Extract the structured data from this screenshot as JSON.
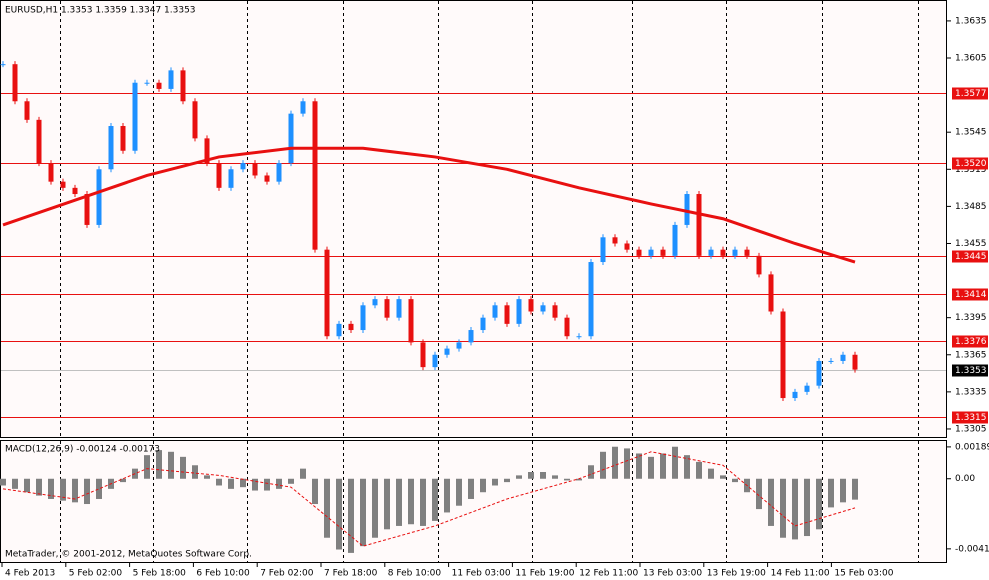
{
  "header": {
    "symbol_info": "EURUSD,H1  1.3353 1.3359 1.3347 1.3353",
    "macd_info": "MACD(12,26,9) -0.00124 -0.00173",
    "copyright": "MetaTrader, © 2001-2012, MetaQuotes Software Corp."
  },
  "x_labels": [
    "4 Feb 2013",
    "5 Feb 02:00",
    "5 Feb 18:00",
    "6 Feb 10:00",
    "7 Feb 02:00",
    "7 Feb 18:00",
    "8 Feb 10:00",
    "11 Feb 03:00",
    "11 Feb 19:00",
    "12 Feb 11:00",
    "13 Feb 03:00",
    "13 Feb 19:00",
    "14 Feb 11:00",
    "15 Feb 03:00"
  ],
  "chart_data": [
    {
      "type": "candlestick",
      "up_color": "#1e90ff",
      "down_color": "#e81010",
      "closes": [
        1.36,
        1.357,
        1.3555,
        1.352,
        1.3505,
        1.35,
        1.3495,
        1.347,
        1.3515,
        1.355,
        1.353,
        1.3585,
        1.3585,
        1.358,
        1.3595,
        1.357,
        1.354,
        1.352,
        1.35,
        1.3515,
        1.352,
        1.351,
        1.3505,
        1.352,
        1.356,
        1.357,
        1.345,
        1.338,
        1.339,
        1.3385,
        1.3405,
        1.341,
        1.3395,
        1.341,
        1.3375,
        1.3355,
        1.3365,
        1.337,
        1.3375,
        1.3385,
        1.3395,
        1.3405,
        1.339,
        1.341,
        1.34,
        1.3405,
        1.3395,
        1.338,
        1.338,
        1.344,
        1.346,
        1.3455,
        1.345,
        1.3445,
        1.345,
        1.3445,
        1.347,
        1.3495,
        1.3445,
        1.345,
        1.3445,
        1.345,
        1.3445,
        1.343,
        1.34,
        1.333,
        1.3335,
        1.334,
        1.336,
        1.336,
        1.3365,
        1.3353
      ],
      "ma": {
        "color": "#e81010",
        "x": [
          0,
          6,
          12,
          18,
          24,
          30,
          36,
          42,
          48,
          54,
          60,
          66,
          71
        ],
        "values": [
          1.347,
          1.349,
          1.351,
          1.3525,
          1.3532,
          1.3532,
          1.3525,
          1.3515,
          1.35,
          1.3487,
          1.3475,
          1.3455,
          1.344
        ]
      },
      "levels": [
        {
          "value": 1.3577,
          "label": "1.3577"
        },
        {
          "value": 1.352,
          "label": "1.3520"
        },
        {
          "value": 1.3445,
          "label": "1.3445"
        },
        {
          "value": 1.3414,
          "label": "1.3414"
        },
        {
          "value": 1.3376,
          "label": "1.3376"
        },
        {
          "value": 1.3315,
          "label": "1.3315"
        }
      ],
      "level_color": "#e81010",
      "current": {
        "value": 1.3353,
        "label": "1.3353"
      },
      "ylim": [
        1.32985,
        1.36511
      ],
      "yticks": [
        1.3635,
        1.3605,
        1.3545,
        1.3515,
        1.3485,
        1.3455,
        1.3395,
        1.3365,
        1.3335,
        1.3305
      ]
    },
    {
      "type": "macd",
      "color": "#808080",
      "values": [
        -0.0004,
        -0.0006,
        -0.0008,
        -0.001,
        -0.0012,
        -0.0013,
        -0.0014,
        -0.0015,
        -0.0012,
        -0.0006,
        -0.0002,
        0.0006,
        0.0014,
        0.0017,
        0.0016,
        0.0013,
        0.0008,
        0.0002,
        -0.0004,
        -0.0006,
        -0.0005,
        -0.0007,
        -0.0007,
        -0.0006,
        -0.0003,
        0.0006,
        -0.0015,
        -0.0035,
        -0.0042,
        -0.0044,
        -0.004,
        -0.0035,
        -0.003,
        -0.0028,
        -0.0027,
        -0.0028,
        -0.0025,
        -0.002,
        -0.0016,
        -0.0012,
        -0.0008,
        -0.0004,
        -0.0002,
        0.0002,
        0.0004,
        0.0004,
        0.0002,
        -0.0001,
        -0.0001,
        0.0008,
        0.0016,
        0.0019,
        0.0018,
        0.0015,
        0.0013,
        0.0015,
        0.0019,
        0.0014,
        0.001,
        0.0006,
        0.0002,
        -0.0002,
        -0.0008,
        -0.0018,
        -0.0028,
        -0.0035,
        -0.0036,
        -0.0034,
        -0.003,
        -0.0017,
        -0.0014,
        -0.00124
      ],
      "signal": {
        "color": "#e81010",
        "x": [
          0,
          6,
          12,
          18,
          24,
          30,
          36,
          42,
          48,
          54,
          60,
          66,
          71
        ],
        "values": [
          -0.0006,
          -0.0012,
          0.0006,
          0.0002,
          -0.0005,
          -0.004,
          -0.0028,
          -0.0012,
          0.0,
          0.0016,
          0.0008,
          -0.0028,
          -0.00173
        ]
      },
      "ylim": [
        -0.00494,
        0.00224
      ],
      "yticks": [
        0.00189,
        {
          "value": 0,
          "label": "0.00"
        },
        -0.00416
      ]
    }
  ]
}
